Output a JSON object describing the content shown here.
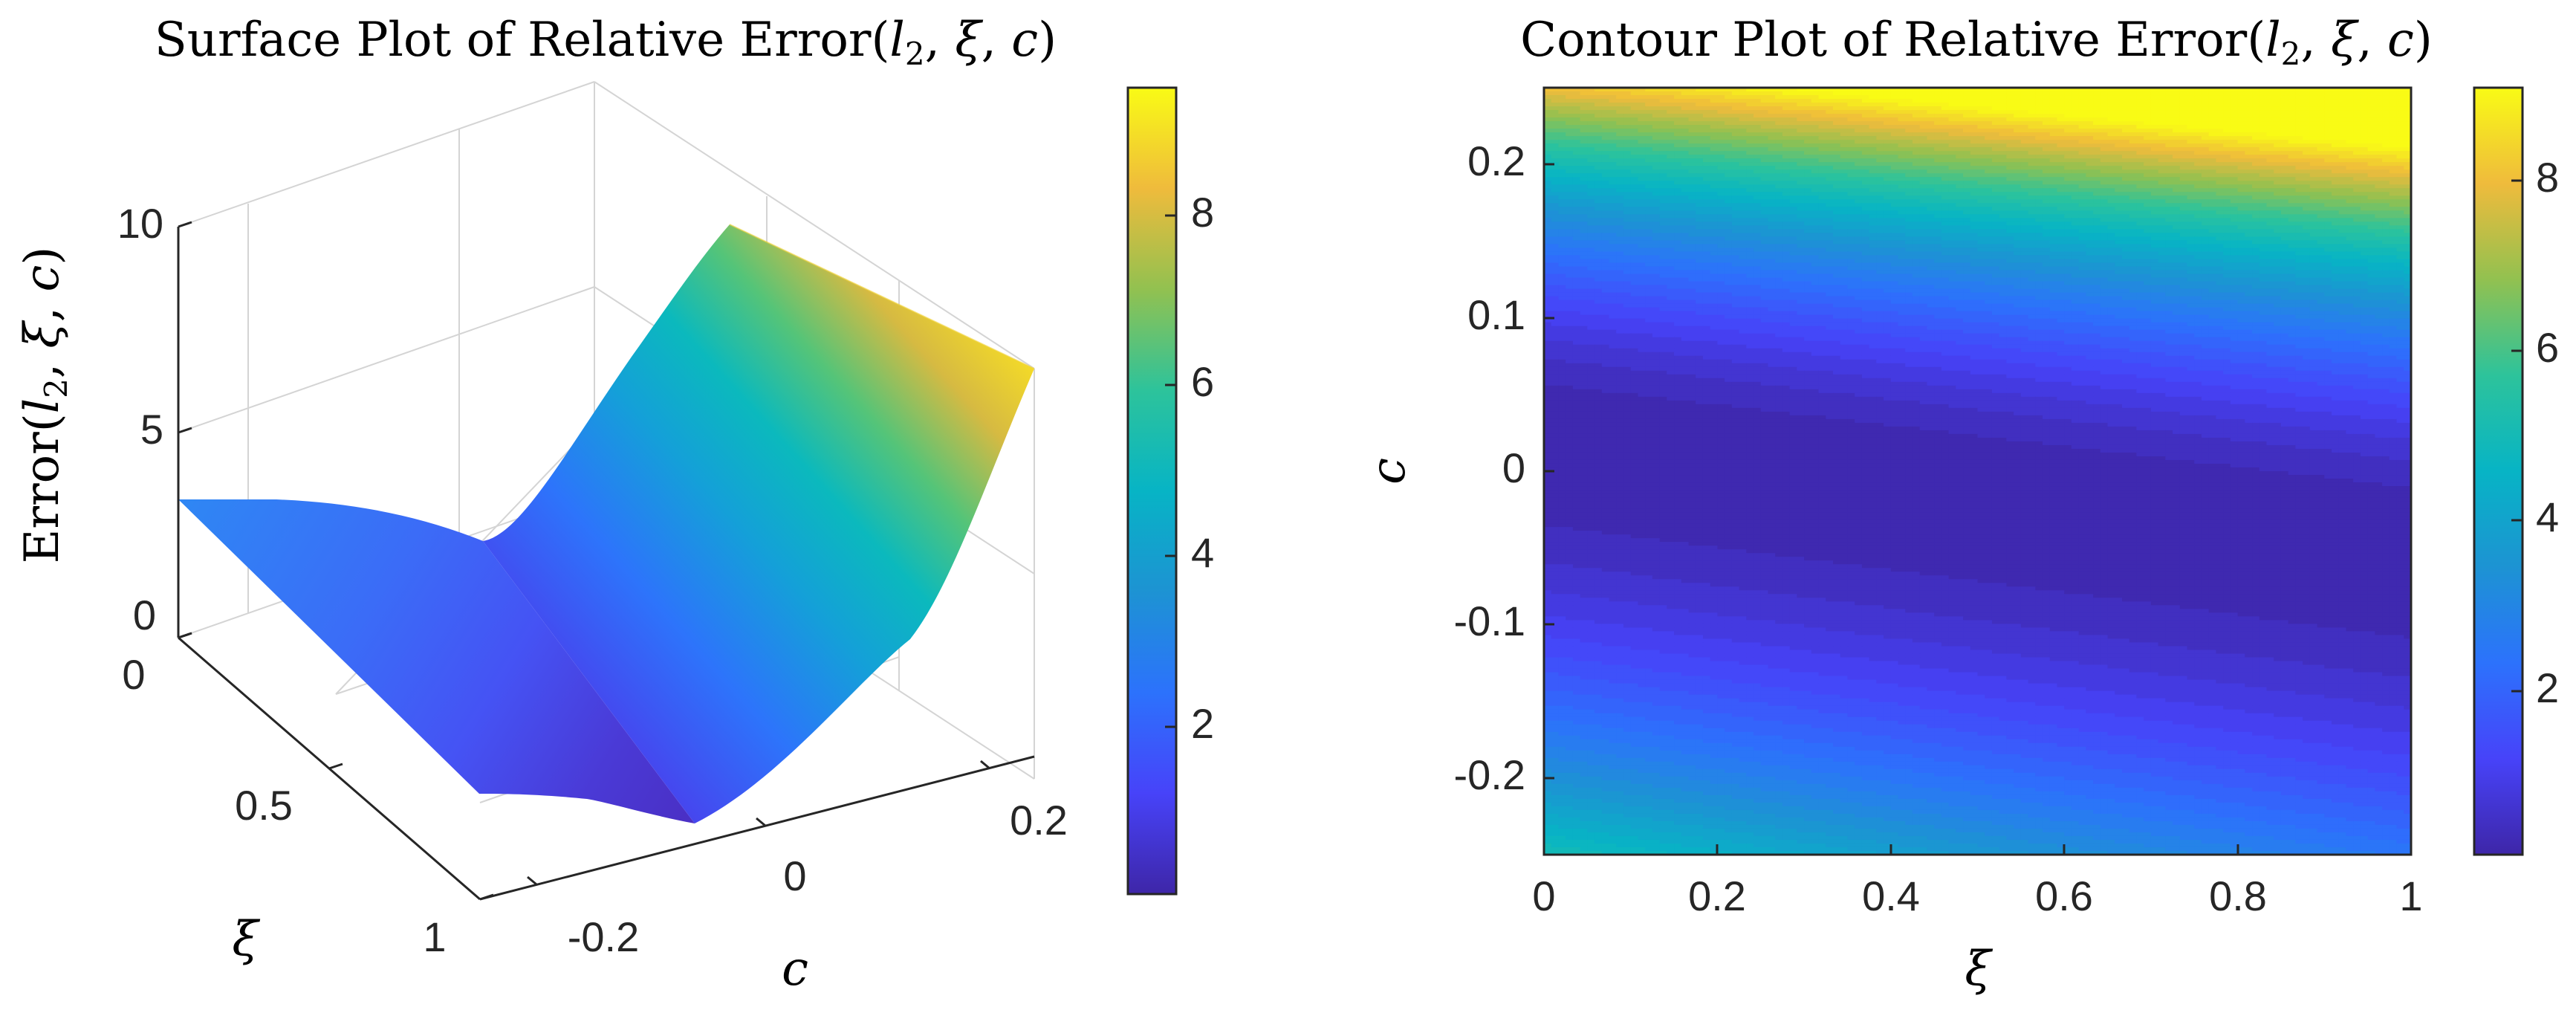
{
  "chart_data": [
    {
      "type": "surface",
      "title": "Surface Plot of Relative Error(l₂, ξ, c)",
      "xlabel": "ξ",
      "ylabel": "c",
      "zlabel": "Error(l₂, ξ, c)",
      "xlim": [
        0,
        1
      ],
      "ylim": [
        -0.25,
        0.25
      ],
      "zlim": [
        0,
        10
      ],
      "xticks": [
        "0",
        "0.5",
        "1"
      ],
      "yticks": [
        "-0.2",
        "0",
        "0.2"
      ],
      "zticks": [
        "0",
        "5",
        "10"
      ],
      "colorbar": {
        "min": 0.1,
        "max": 9.4,
        "ticks": [
          "2",
          "4",
          "6",
          "8"
        ]
      },
      "colormap": "parula",
      "grid": true,
      "corner_values": [
        {
          "xi": 0,
          "c": -0.25,
          "error": 3.1
        },
        {
          "xi": 0,
          "c": 0.25,
          "error": 9.4
        },
        {
          "xi": 1,
          "c": -0.25,
          "error": 1.5
        },
        {
          "xi": 1,
          "c": 0.25,
          "error": 8.3
        }
      ],
      "min_valley": {
        "c_at_xi_0": 0.02,
        "c_at_xi_1": -0.05,
        "error_min": 0.1
      }
    },
    {
      "type": "contour",
      "title": "Contour Plot of Relative Error(l₂, ξ, c)",
      "xlabel": "ξ",
      "ylabel": "c",
      "xlim": [
        0,
        1
      ],
      "ylim": [
        -0.25,
        0.25
      ],
      "xticks": [
        "0",
        "0.2",
        "0.4",
        "0.6",
        "0.8",
        "1"
      ],
      "yticks": [
        "-0.2",
        "-0.1",
        "0",
        "0.1",
        "0.2"
      ],
      "colorbar": {
        "min": 0.1,
        "max": 9.1,
        "ticks": [
          "2",
          "4",
          "6",
          "8"
        ]
      },
      "colormap": "parula",
      "filled": true,
      "levels": 40
    }
  ],
  "text": {
    "left_title_prefix": "Surface Plot of Relative Error",
    "right_title_prefix": "Contour Plot of Relative Error",
    "args": [
      "l",
      "2",
      "ξ",
      "c"
    ],
    "zlabel_prefix": "Error",
    "x_label": "ξ",
    "y_label": "c",
    "s_zticks": [
      "10",
      "5",
      "0"
    ],
    "s_xiticks": [
      "0",
      "0.5",
      "1"
    ],
    "s_cticks": [
      "-0.2",
      "0",
      "0.2"
    ],
    "cb_ticks": [
      "8",
      "6",
      "4",
      "2"
    ],
    "c_xticks": [
      "0",
      "0.2",
      "0.4",
      "0.6",
      "0.8",
      "1"
    ],
    "c_yticks": [
      "0.2",
      "0.1",
      "0",
      "-0.1",
      "-0.2"
    ]
  }
}
